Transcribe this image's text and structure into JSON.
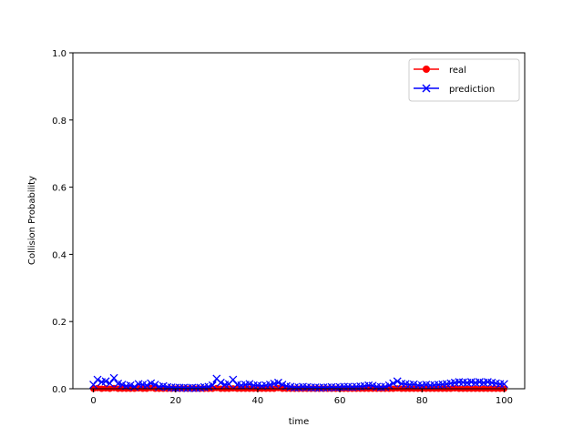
{
  "chart_data": {
    "type": "line",
    "xlabel": "time",
    "ylabel": "Collision Probability",
    "xlim": [
      -5,
      105
    ],
    "ylim": [
      0,
      1.0
    ],
    "xticks": [
      "0",
      "20",
      "40",
      "60",
      "80",
      "100"
    ],
    "yticks": [
      "0.0",
      "0.2",
      "0.4",
      "0.6",
      "0.8",
      "1.0"
    ],
    "legend_position": "top-right",
    "grid": false,
    "series": [
      {
        "name": "real",
        "color": "#ff0000",
        "marker": "circle",
        "x": [
          0,
          1,
          2,
          3,
          4,
          5,
          6,
          7,
          8,
          9,
          10,
          11,
          12,
          13,
          14,
          15,
          16,
          17,
          18,
          19,
          20,
          21,
          22,
          23,
          24,
          25,
          26,
          27,
          28,
          29,
          30,
          31,
          32,
          33,
          34,
          35,
          36,
          37,
          38,
          39,
          40,
          41,
          42,
          43,
          44,
          45,
          46,
          47,
          48,
          49,
          50,
          51,
          52,
          53,
          54,
          55,
          56,
          57,
          58,
          59,
          60,
          61,
          62,
          63,
          64,
          65,
          66,
          67,
          68,
          69,
          70,
          71,
          72,
          73,
          74,
          75,
          76,
          77,
          78,
          79,
          80,
          81,
          82,
          83,
          84,
          85,
          86,
          87,
          88,
          89,
          90,
          91,
          92,
          93,
          94,
          95,
          96,
          97,
          98,
          99,
          100
        ],
        "y": [
          0,
          0.002,
          0,
          0.001,
          0,
          0.002,
          0,
          0,
          0,
          0,
          0,
          0.001,
          0,
          0,
          0.002,
          0,
          0,
          0,
          0,
          0,
          0,
          0,
          0,
          0,
          0,
          0,
          0,
          0,
          0,
          0,
          0.002,
          0,
          0,
          0,
          0.001,
          0,
          0,
          0,
          0,
          0,
          0,
          0,
          0,
          0,
          0,
          0.002,
          0,
          0,
          0,
          0,
          0,
          0,
          0,
          0,
          0,
          0,
          0,
          0,
          0,
          0,
          0,
          0,
          0,
          0,
          0,
          0,
          0,
          0,
          0,
          0,
          0,
          0,
          0,
          0,
          0.001,
          0,
          0,
          0,
          0,
          0,
          0,
          0,
          0,
          0,
          0,
          0,
          0,
          0,
          0.001,
          0,
          0,
          0,
          0,
          0,
          0,
          0,
          0,
          0,
          0,
          0,
          0
        ]
      },
      {
        "name": "prediction",
        "color": "#0000ff",
        "marker": "x",
        "x": [
          0,
          1,
          2,
          3,
          4,
          5,
          6,
          7,
          8,
          9,
          10,
          11,
          12,
          13,
          14,
          15,
          16,
          17,
          18,
          19,
          20,
          21,
          22,
          23,
          24,
          25,
          26,
          27,
          28,
          29,
          30,
          31,
          32,
          33,
          34,
          35,
          36,
          37,
          38,
          39,
          40,
          41,
          42,
          43,
          44,
          45,
          46,
          47,
          48,
          49,
          50,
          51,
          52,
          53,
          54,
          55,
          56,
          57,
          58,
          59,
          60,
          61,
          62,
          63,
          64,
          65,
          66,
          67,
          68,
          69,
          70,
          71,
          72,
          73,
          74,
          75,
          76,
          77,
          78,
          79,
          80,
          81,
          82,
          83,
          84,
          85,
          86,
          87,
          88,
          89,
          90,
          91,
          92,
          93,
          94,
          95,
          96,
          97,
          98,
          99,
          100
        ],
        "y": [
          0.012,
          0.027,
          0.02,
          0.022,
          0.016,
          0.032,
          0.015,
          0.012,
          0.008,
          0.01,
          0.006,
          0.014,
          0.012,
          0.01,
          0.016,
          0.012,
          0.006,
          0.008,
          0.005,
          0.004,
          0.003,
          0.003,
          0.003,
          0.002,
          0.003,
          0.002,
          0.003,
          0.005,
          0.006,
          0.01,
          0.03,
          0.018,
          0.012,
          0.014,
          0.027,
          0.012,
          0.01,
          0.012,
          0.014,
          0.01,
          0.01,
          0.008,
          0.01,
          0.012,
          0.015,
          0.018,
          0.012,
          0.008,
          0.006,
          0.004,
          0.004,
          0.006,
          0.005,
          0.004,
          0.004,
          0.003,
          0.004,
          0.004,
          0.005,
          0.004,
          0.005,
          0.006,
          0.006,
          0.005,
          0.006,
          0.007,
          0.008,
          0.01,
          0.009,
          0.006,
          0.005,
          0.006,
          0.01,
          0.016,
          0.022,
          0.015,
          0.014,
          0.012,
          0.013,
          0.01,
          0.01,
          0.012,
          0.01,
          0.011,
          0.012,
          0.013,
          0.014,
          0.016,
          0.018,
          0.02,
          0.019,
          0.018,
          0.02,
          0.018,
          0.02,
          0.018,
          0.02,
          0.018,
          0.016,
          0.014,
          0.014
        ]
      }
    ]
  }
}
